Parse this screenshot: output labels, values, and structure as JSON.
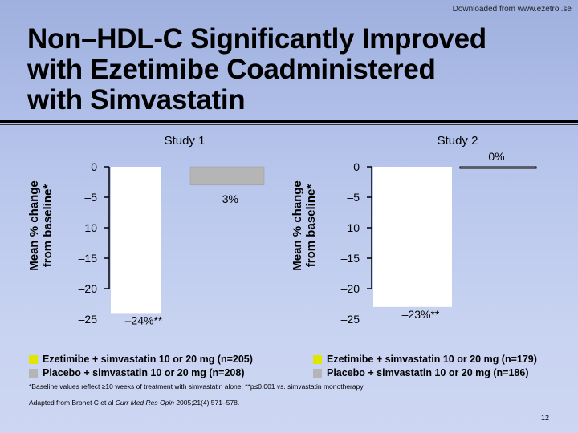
{
  "header": {
    "downloaded_from": "Downloaded from www.ezetrol.se",
    "title_line1": "Non–HDL-C Significantly Improved",
    "title_line2": "with Ezetimibe Coadministered",
    "title_line3": "with Simvastatin"
  },
  "colors": {
    "ezetimibe": "#ffffff",
    "placebo": "#b5b5b5",
    "legend_ezetimibe": "#dfe600",
    "legend_placebo": "#b5b5b5"
  },
  "legend": {
    "study1_ezetimibe": "Ezetimibe + simvastatin 10 or 20 mg (n=205)",
    "study1_placebo": "Placebo + simvastatin 10 or 20 mg (n=208)",
    "study2_ezetimibe": "Ezetimibe + simvastatin 10 or 20 mg (n=179)",
    "study2_placebo": "Placebo + simvastatin 10 or 20 mg (n=186)"
  },
  "footnotes": {
    "baseline": "*Baseline values reflect ≥10 weeks of treatment with simvastatin alone; **p≤0.001 vs. simvastatin monotherapy",
    "adapted_prefix": "Adapted from Brohet C et al ",
    "adapted_journal": "Curr Med Res Opin",
    "adapted_suffix": " 2005;21(4):571–578.",
    "page_number": "12"
  },
  "chart_data": [
    {
      "type": "bar",
      "title": "Study 1",
      "ylabel": "Mean % change from baseline*",
      "ylim": [
        -25,
        0
      ],
      "yticks": [
        0,
        -5,
        -10,
        -15,
        -20,
        -25
      ],
      "ytick_labels": [
        "0",
        "–5",
        "–10",
        "–15",
        "–20",
        "–25"
      ],
      "series": [
        {
          "name": "Ezetimibe + simvastatin 10 or 20 mg (n=205)",
          "values": [
            -24
          ],
          "label": "–24%**"
        },
        {
          "name": "Placebo + simvastatin 10 or 20 mg (n=208)",
          "values": [
            -3
          ],
          "label": "–3%"
        }
      ]
    },
    {
      "type": "bar",
      "title": "Study 2",
      "ylabel": "Mean % change from baseline*",
      "ylim": [
        -25,
        0
      ],
      "yticks": [
        0,
        -5,
        -10,
        -15,
        -20,
        -25
      ],
      "ytick_labels": [
        "0",
        "–5",
        "–10",
        "–15",
        "–20",
        "–25"
      ],
      "series": [
        {
          "name": "Ezetimibe + simvastatin 10 or 20 mg (n=179)",
          "values": [
            -23
          ],
          "label": "–23%**"
        },
        {
          "name": "Placebo + simvastatin 10 or 20 mg (n=186)",
          "values": [
            0
          ],
          "label": "0%"
        }
      ]
    }
  ]
}
